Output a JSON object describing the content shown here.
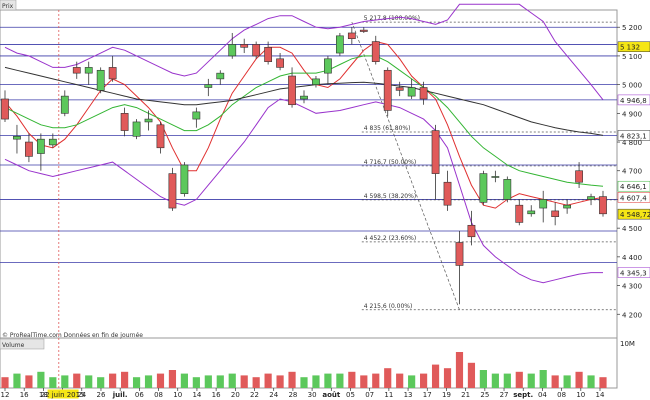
{
  "panels": {
    "price_label": "Prix",
    "volume_label": "Volume",
    "footer": "© ProRealTime.com Données en fin de journée",
    "volume_scale": "10M"
  },
  "colors": {
    "up": "#5cc85c",
    "down": "#e05a5a",
    "bollinger": "#9933cc",
    "ma_short": "#e03030",
    "ma_mid": "#33b533",
    "ma_long": "#333333",
    "level_line": "#3a3aa8",
    "cursor": "#e05a5a"
  },
  "chart_data": {
    "type": "candlestick",
    "y_range": [
      4180,
      5260
    ],
    "y_ticks": [
      "5 200",
      "5 100",
      "5 000",
      "4 900",
      "4 800",
      "4 700",
      "4 600",
      "4 500",
      "4 400",
      "4 300",
      "4 200"
    ],
    "x_ticks": [
      "12",
      "16",
      "18",
      "22 juin 2015",
      "24",
      "26",
      "juil.",
      "06",
      "08",
      "10",
      "14",
      "16",
      "20",
      "22",
      "24",
      "28",
      "30",
      "août",
      "05",
      "07",
      "11",
      "13",
      "17",
      "19",
      "21",
      "25",
      "27",
      "sept.",
      "04",
      "08",
      "10",
      "14"
    ],
    "price_boxes": [
      {
        "label": "5 132",
        "value": 5132,
        "bg": "#f5e616"
      },
      {
        "label": "4 946,8",
        "value": 4946.8,
        "bg": "#ffffff",
        "fg": "#9933cc"
      },
      {
        "label": "4 823,1",
        "value": 4823.1,
        "bg": "#ffffff",
        "fg": "#333333"
      },
      {
        "label": "4 646,1",
        "value": 4646.1,
        "bg": "#ffffff",
        "fg": "#33b533"
      },
      {
        "label": "4 607,4",
        "value": 4607.4,
        "bg": "#ffffff",
        "fg": "#e03030"
      },
      {
        "label": "4 548,72",
        "value": 4548.72,
        "bg": "#f5e616"
      },
      {
        "label": "4 345,3",
        "value": 4345.3,
        "bg": "#ffffff",
        "fg": "#9933cc"
      }
    ],
    "fib_levels": [
      {
        "label": "5 217,8 (100.00%)",
        "value": 5217.8
      },
      {
        "label": "4 835 (61.80%)",
        "value": 4835
      },
      {
        "label": "4 716,7 (50.00%)",
        "value": 4716.7
      },
      {
        "label": "4 598,5 (38.20%)",
        "value": 4598.5
      },
      {
        "label": "4 452,2 (23.60%)",
        "value": 4452.2
      },
      {
        "label": "4 215,6 (0.00%)",
        "value": 4215.6
      }
    ],
    "horizontal_levels": [
      5200,
      5140,
      5100,
      5000,
      4946.8,
      4823.1,
      4720,
      4600,
      4490,
      4380
    ],
    "candles": [
      {
        "o": 4950,
        "h": 4980,
        "l": 4870,
        "c": 4880
      },
      {
        "o": 4810,
        "h": 4860,
        "l": 4760,
        "c": 4820
      },
      {
        "o": 4800,
        "h": 4830,
        "l": 4730,
        "c": 4750
      },
      {
        "o": 4760,
        "h": 4830,
        "l": 4700,
        "c": 4810
      },
      {
        "o": 4790,
        "h": 4830,
        "l": 4780,
        "c": 4810
      },
      {
        "o": 4900,
        "h": 4980,
        "l": 4890,
        "c": 4960
      },
      {
        "o": 5060,
        "h": 5080,
        "l": 5020,
        "c": 5040
      },
      {
        "o": 5040,
        "h": 5080,
        "l": 5000,
        "c": 5060
      },
      {
        "o": 4980,
        "h": 5060,
        "l": 4970,
        "c": 5050
      },
      {
        "o": 5060,
        "h": 5100,
        "l": 5010,
        "c": 5020
      },
      {
        "o": 4900,
        "h": 4920,
        "l": 4820,
        "c": 4840
      },
      {
        "o": 4820,
        "h": 4880,
        "l": 4810,
        "c": 4870
      },
      {
        "o": 4870,
        "h": 4910,
        "l": 4840,
        "c": 4880
      },
      {
        "o": 4860,
        "h": 4870,
        "l": 4760,
        "c": 4780
      },
      {
        "o": 4690,
        "h": 4710,
        "l": 4560,
        "c": 4570
      },
      {
        "o": 4620,
        "h": 4730,
        "l": 4610,
        "c": 4720
      },
      {
        "o": 4880,
        "h": 4920,
        "l": 4850,
        "c": 4905
      },
      {
        "o": 4990,
        "h": 5020,
        "l": 4960,
        "c": 5000
      },
      {
        "o": 5020,
        "h": 5050,
        "l": 5000,
        "c": 5040
      },
      {
        "o": 5100,
        "h": 5180,
        "l": 5090,
        "c": 5140
      },
      {
        "o": 5140,
        "h": 5160,
        "l": 5110,
        "c": 5130
      },
      {
        "o": 5140,
        "h": 5150,
        "l": 5090,
        "c": 5100
      },
      {
        "o": 5130,
        "h": 5150,
        "l": 5070,
        "c": 5080
      },
      {
        "o": 5090,
        "h": 5110,
        "l": 5050,
        "c": 5060
      },
      {
        "o": 5030,
        "h": 5060,
        "l": 4920,
        "c": 4930
      },
      {
        "o": 4950,
        "h": 4980,
        "l": 4935,
        "c": 4960
      },
      {
        "o": 5000,
        "h": 5030,
        "l": 4990,
        "c": 5020
      },
      {
        "o": 5040,
        "h": 5100,
        "l": 5000,
        "c": 5090
      },
      {
        "o": 5110,
        "h": 5180,
        "l": 5100,
        "c": 5170
      },
      {
        "o": 5180,
        "h": 5200,
        "l": 5140,
        "c": 5160
      },
      {
        "o": 5190,
        "h": 5200,
        "l": 5180,
        "c": 5185
      },
      {
        "o": 5150,
        "h": 5170,
        "l": 5070,
        "c": 5080
      },
      {
        "o": 5050,
        "h": 5060,
        "l": 4890,
        "c": 4910
      },
      {
        "o": 4990,
        "h": 5010,
        "l": 4960,
        "c": 4980
      },
      {
        "o": 4960,
        "h": 5020,
        "l": 4950,
        "c": 4990
      },
      {
        "o": 4990,
        "h": 5010,
        "l": 4930,
        "c": 4950
      },
      {
        "o": 4840,
        "h": 4860,
        "l": 4600,
        "c": 4690
      },
      {
        "o": 4660,
        "h": 4700,
        "l": 4560,
        "c": 4580
      },
      {
        "o": 4450,
        "h": 4490,
        "l": 4235,
        "c": 4370
      },
      {
        "o": 4510,
        "h": 4560,
        "l": 4440,
        "c": 4470
      },
      {
        "o": 4590,
        "h": 4700,
        "l": 4580,
        "c": 4690
      },
      {
        "o": 4680,
        "h": 4700,
        "l": 4660,
        "c": 4680
      },
      {
        "o": 4600,
        "h": 4680,
        "l": 4590,
        "c": 4670
      },
      {
        "o": 4580,
        "h": 4600,
        "l": 4510,
        "c": 4520
      },
      {
        "o": 4550,
        "h": 4580,
        "l": 4540,
        "c": 4560
      },
      {
        "o": 4570,
        "h": 4630,
        "l": 4520,
        "c": 4600
      },
      {
        "o": 4560,
        "h": 4590,
        "l": 4510,
        "c": 4540
      },
      {
        "o": 4570,
        "h": 4600,
        "l": 4550,
        "c": 4580
      },
      {
        "o": 4700,
        "h": 4730,
        "l": 4640,
        "c": 4660
      },
      {
        "o": 4600,
        "h": 4620,
        "l": 4580,
        "c": 4610
      },
      {
        "o": 4610,
        "h": 4630,
        "l": 4540,
        "c": 4550
      }
    ],
    "volume": [
      3,
      4,
      3.5,
      4.5,
      3,
      3.5,
      4,
      3.5,
      3,
      4,
      4.5,
      3,
      3.5,
      4,
      5,
      4,
      3,
      3.5,
      3.5,
      4,
      3.5,
      3,
      4,
      3.5,
      4.5,
      3,
      3.5,
      4,
      4,
      4.5,
      3.5,
      4,
      5.5,
      4,
      3.5,
      4,
      6.5,
      5.5,
      10,
      7,
      5,
      4,
      4,
      4.5,
      4,
      5,
      3.5,
      3.5,
      4.5,
      3.5,
      3
    ],
    "series": [
      {
        "name": "ma_short",
        "values": [
          4940,
          4890,
          4830,
          4790,
          4780,
          4810,
          4860,
          4920,
          4980,
          5020,
          5000,
          4960,
          4920,
          4870,
          4780,
          4700,
          4700,
          4780,
          4880,
          4970,
          5030,
          5090,
          5130,
          5130,
          5110,
          5050,
          5000,
          4990,
          5020,
          5070,
          5120,
          5150,
          5140,
          5090,
          5030,
          4990,
          4950,
          4860,
          4750,
          4650,
          4580,
          4570,
          4600,
          4620,
          4610,
          4600,
          4590,
          4580,
          4590,
          4600,
          4607
        ]
      },
      {
        "name": "ma_mid",
        "values": [
          4920,
          4900,
          4880,
          4860,
          4850,
          4850,
          4860,
          4880,
          4900,
          4920,
          4930,
          4920,
          4900,
          4880,
          4860,
          4840,
          4840,
          4860,
          4890,
          4930,
          4960,
          4990,
          5010,
          5030,
          5040,
          5040,
          5040,
          5050,
          5070,
          5090,
          5100,
          5100,
          5080,
          5050,
          5020,
          4990,
          4960,
          4920,
          4870,
          4820,
          4780,
          4750,
          4720,
          4700,
          4690,
          4680,
          4670,
          4660,
          4655,
          4650,
          4646
        ]
      },
      {
        "name": "ma_long",
        "values": [
          5060,
          5050,
          5040,
          5030,
          5020,
          5010,
          5000,
          4990,
          4980,
          4970,
          4960,
          4950,
          4945,
          4940,
          4935,
          4930,
          4930,
          4935,
          4940,
          4945,
          4955,
          4965,
          4975,
          4985,
          4990,
          4995,
          5000,
          5003,
          5005,
          5007,
          5008,
          5005,
          5000,
          4995,
          4990,
          4980,
          4970,
          4960,
          4950,
          4940,
          4930,
          4915,
          4900,
          4885,
          4870,
          4860,
          4850,
          4842,
          4835,
          4830,
          4823
        ]
      },
      {
        "name": "boll_upper",
        "values": [
          5130,
          5110,
          5100,
          5080,
          5060,
          5060,
          5070,
          5090,
          5110,
          5130,
          5120,
          5100,
          5080,
          5060,
          5040,
          5030,
          5040,
          5080,
          5120,
          5160,
          5190,
          5210,
          5230,
          5240,
          5240,
          5220,
          5200,
          5195,
          5200,
          5210,
          5220,
          5225,
          5230,
          5235,
          5230,
          5220,
          5210,
          5225,
          5280,
          5280,
          5280,
          5280,
          5280,
          5280,
          5250,
          5220,
          5150,
          5100,
          5050,
          5000,
          4947
        ]
      },
      {
        "name": "boll_lower",
        "values": [
          4740,
          4720,
          4700,
          4690,
          4680,
          4690,
          4700,
          4710,
          4720,
          4730,
          4700,
          4670,
          4640,
          4610,
          4590,
          4580,
          4600,
          4650,
          4700,
          4750,
          4800,
          4860,
          4920,
          4950,
          4940,
          4920,
          4900,
          4905,
          4910,
          4920,
          4930,
          4940,
          4930,
          4920,
          4900,
          4880,
          4840,
          4780,
          4650,
          4520,
          4440,
          4400,
          4370,
          4340,
          4320,
          4310,
          4320,
          4330,
          4340,
          4345,
          4345
        ]
      }
    ]
  }
}
